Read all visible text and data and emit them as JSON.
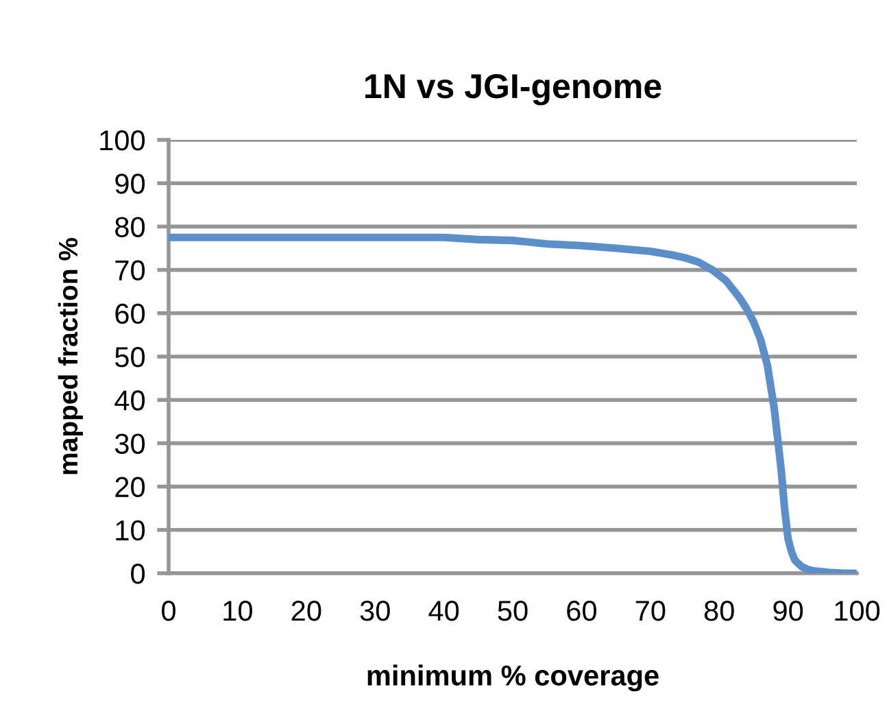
{
  "chart_data": {
    "type": "line",
    "title": "1N vs JGI-genome",
    "xlabel": "minimum % coverage",
    "ylabel": "mapped fraction %",
    "x": [
      0,
      10,
      20,
      30,
      40,
      45,
      50,
      55,
      60,
      65,
      70,
      73,
      75,
      77,
      79,
      81,
      83,
      84,
      85,
      86,
      87,
      88,
      89,
      89.5,
      90,
      90.5,
      91,
      92,
      93,
      94,
      96,
      98,
      100
    ],
    "series": [
      {
        "color": "#5b8fc9",
        "values": [
          77.5,
          77.5,
          77.5,
          77.5,
          77.5,
          77,
          76.8,
          76,
          75.6,
          75,
          74.3,
          73.5,
          72.8,
          71.8,
          70,
          67.5,
          63.5,
          61,
          58,
          54,
          48,
          38,
          24,
          15,
          8,
          5,
          3,
          1.5,
          0.8,
          0.5,
          0.2,
          0,
          0
        ]
      }
    ],
    "xlim": [
      0,
      100
    ],
    "ylim": [
      0,
      100
    ],
    "xticks": [
      0,
      10,
      20,
      30,
      40,
      50,
      60,
      70,
      80,
      90,
      100
    ],
    "yticks": [
      0,
      10,
      20,
      30,
      40,
      50,
      60,
      70,
      80,
      90,
      100
    ],
    "grid": "y",
    "legend": false,
    "marker": "none",
    "line_style": "solid"
  }
}
